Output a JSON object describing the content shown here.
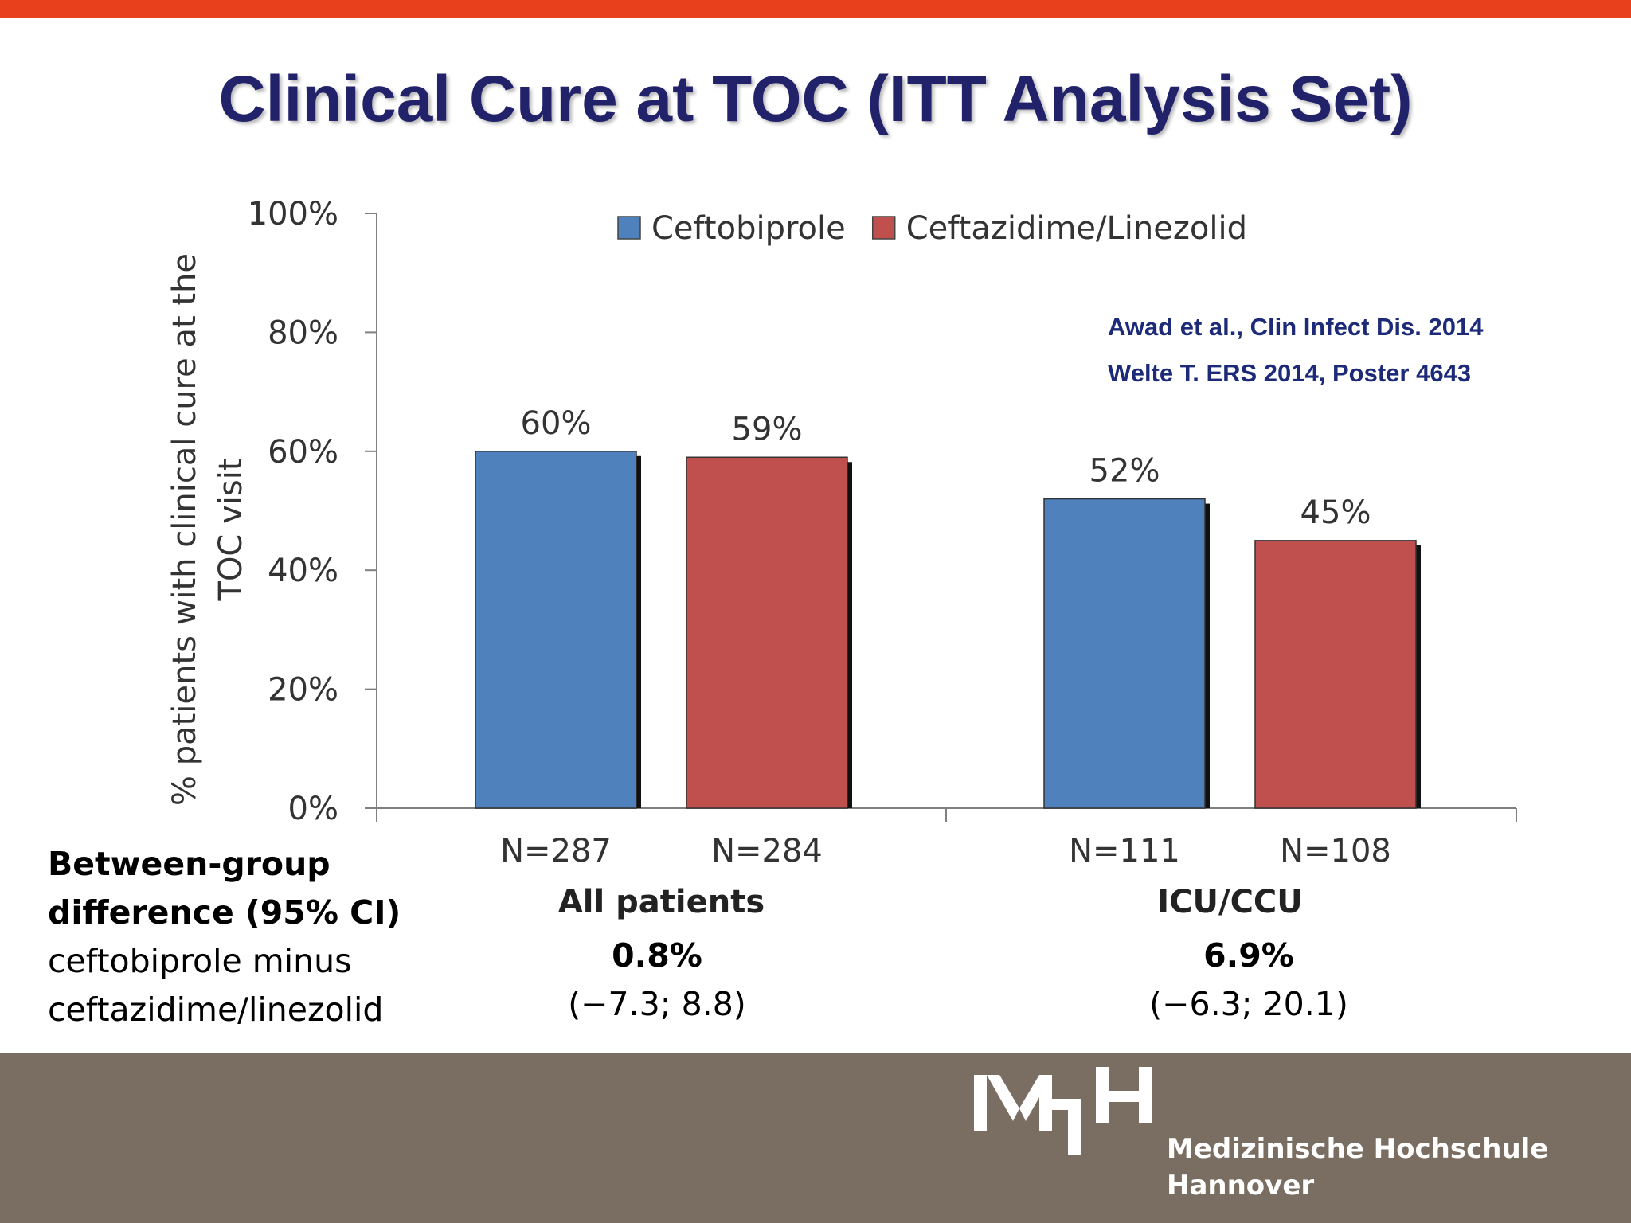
{
  "slide": {
    "title": "Clinical Cure at TOC (ITT Analysis Set)",
    "references": [
      "Awad et al., Clin Infect Dis. 2014",
      "Welte T. ERS 2014, Poster 4643"
    ],
    "difference": {
      "label_bold": [
        "Between-group",
        "difference (95% CI)"
      ],
      "label_plain": [
        "ceftobiprole minus",
        "ceftazidime/linezolid"
      ],
      "groups": [
        {
          "value": "0.8%",
          "ci": "(−7.3; 8.8)"
        },
        {
          "value": "6.9%",
          "ci": "(−6.3; 20.1)"
        }
      ]
    },
    "institution": {
      "logo_text": "MHH",
      "lines": [
        "Medizinische Hochschule",
        "Hannover"
      ]
    },
    "colors": {
      "top_bar": "#e8401c",
      "footer": "#7a6e62",
      "title": "#22226a"
    }
  },
  "chart_data": {
    "type": "bar",
    "title": "",
    "ylabel": "% patients with clinical cure at the TOC visit",
    "ylabel_lines": [
      "% patients with clinical cure at the",
      "TOC visit"
    ],
    "ylim": [
      0,
      100
    ],
    "yticks": [
      "0%",
      "20%",
      "40%",
      "60%",
      "80%",
      "100%"
    ],
    "ytick_values": [
      0,
      20,
      40,
      60,
      80,
      100
    ],
    "legend_position": "top",
    "groups": [
      {
        "name": "All patients",
        "n_labels": [
          "N=287",
          "N=284"
        ]
      },
      {
        "name": "ICU/CCU",
        "n_labels": [
          "N=111",
          "N=108"
        ]
      }
    ],
    "series": [
      {
        "name": "Ceftobiprole",
        "color": "#4f81bd",
        "values": [
          60,
          52
        ],
        "labels": [
          "60%",
          "52%"
        ]
      },
      {
        "name": "Ceftazidime/Linezolid",
        "color": "#c0504d",
        "values": [
          59,
          45
        ],
        "labels": [
          "59%",
          "45%"
        ]
      }
    ]
  }
}
